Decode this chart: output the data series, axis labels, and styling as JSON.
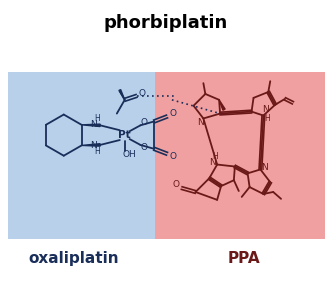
{
  "title": "phorbiplatin",
  "label_left": "oxaliplatin",
  "label_right": "PPA",
  "bg_left_color": "#b8d0ea",
  "bg_right_color": "#f0a0a0",
  "title_fontsize": 13,
  "label_fontsize": 11,
  "line_color_left": "#1a2e5a",
  "line_color_right": "#6b1818"
}
